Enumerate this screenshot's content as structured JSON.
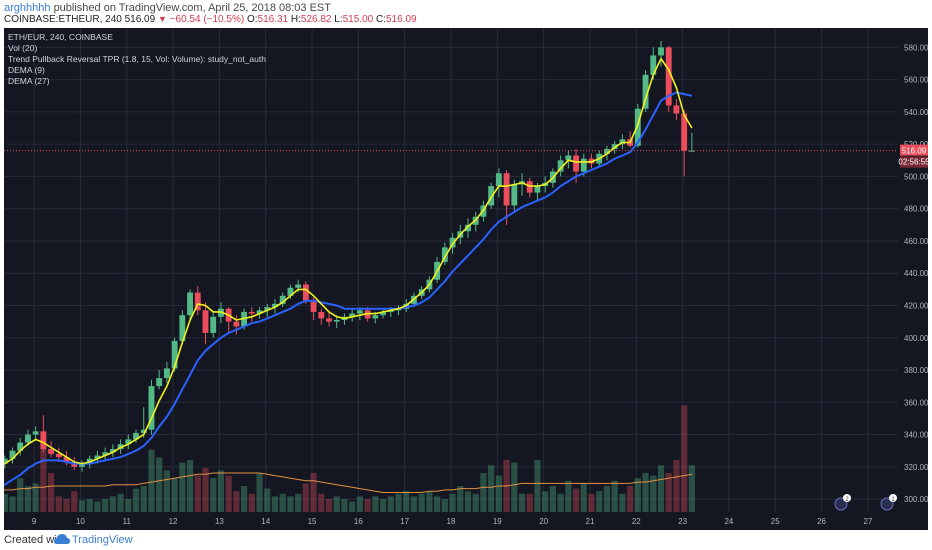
{
  "header": {
    "author": "arghhhhh",
    "published_text": "published on TradingView.com, April 25, 2018 08:03 EST",
    "symbol": "COINBASE:ETHEUR, 240",
    "last": "516.09",
    "change": "−60.54 (−10.5%)",
    "o_label": "O:",
    "o": "516.31",
    "h_label": "H:",
    "h": "526.82",
    "l_label": "L:",
    "l": "515.00",
    "c_label": "C:",
    "c": "516.09"
  },
  "legend": {
    "title": "ETH/EUR, 240, COINBASE",
    "vol": "Vol (20)",
    "tpr": "Trend Pullback Reversal TPR (1.8, 15, Vol: Volume): study_not_auth",
    "dema9": "DEMA (9)",
    "dema27": "DEMA (27)"
  },
  "price_tag": "516.09",
  "countdown_tag": "02:56:55",
  "badges": [
    "2",
    "1"
  ],
  "footer": {
    "created": "Created with",
    "brand": "TradingView"
  },
  "colors": {
    "background": "#141722",
    "up": "#53b987",
    "down": "#eb4d5c",
    "dema9": "#f2f21c",
    "dema27": "#2962ff",
    "vol_ma": "#e0913e",
    "price_line": "#eb4d5c",
    "grid": "#262b3a"
  },
  "chart_data": {
    "type": "candlestick",
    "title": "ETH/EUR, 240, COINBASE",
    "x_tick_labels": [
      "9",
      "10",
      "11",
      "12",
      "13",
      "14",
      "15",
      "16",
      "17",
      "18",
      "19",
      "20",
      "21",
      "22",
      "23",
      "24",
      "25",
      "26",
      "27"
    ],
    "y_tick_labels": [
      "300.00",
      "320.00",
      "340.00",
      "360.00",
      "380.00",
      "400.00",
      "420.00",
      "440.00",
      "460.00",
      "480.00",
      "500.00",
      "520.00",
      "540.00",
      "560.00",
      "580.00"
    ],
    "ylim": [
      292,
      592
    ],
    "candles_per_day": 6,
    "first_candle_day_offset": -1,
    "candles": [
      [
        316,
        321,
        314,
        319
      ],
      [
        319,
        324,
        316,
        322
      ],
      [
        322,
        327,
        319,
        325
      ],
      [
        325,
        332,
        322,
        330
      ],
      [
        330,
        338,
        327,
        335
      ],
      [
        335,
        343,
        333,
        340
      ],
      [
        340,
        345,
        336,
        342
      ],
      [
        342,
        352,
        329,
        331
      ],
      [
        331,
        336,
        326,
        328
      ],
      [
        328,
        332,
        323,
        326
      ],
      [
        326,
        330,
        321,
        323
      ],
      [
        323,
        326,
        318,
        320
      ],
      [
        320,
        324,
        317,
        322
      ],
      [
        322,
        327,
        319,
        325
      ],
      [
        325,
        330,
        322,
        327
      ],
      [
        327,
        332,
        324,
        329
      ],
      [
        329,
        334,
        326,
        331
      ],
      [
        331,
        337,
        328,
        334
      ],
      [
        334,
        340,
        331,
        337
      ],
      [
        337,
        343,
        335,
        341
      ],
      [
        341,
        357,
        338,
        343
      ],
      [
        343,
        374,
        340,
        370
      ],
      [
        370,
        380,
        368,
        375
      ],
      [
        375,
        385,
        372,
        381
      ],
      [
        381,
        400,
        379,
        398
      ],
      [
        398,
        417,
        396,
        414
      ],
      [
        414,
        430,
        410,
        428
      ],
      [
        428,
        432,
        414,
        417
      ],
      [
        417,
        422,
        396,
        403
      ],
      [
        403,
        416,
        400,
        413
      ],
      [
        413,
        422,
        409,
        418
      ],
      [
        418,
        419,
        403,
        410
      ],
      [
        410,
        414,
        402,
        407
      ],
      [
        407,
        418,
        405,
        416
      ],
      [
        416,
        419,
        410,
        415
      ],
      [
        415,
        419,
        412,
        417
      ],
      [
        417,
        421,
        413,
        419
      ],
      [
        419,
        424,
        415,
        421
      ],
      [
        421,
        428,
        419,
        426
      ],
      [
        426,
        433,
        424,
        431
      ],
      [
        431,
        436,
        428,
        433
      ],
      [
        433,
        435,
        421,
        423
      ],
      [
        423,
        425,
        411,
        416
      ],
      [
        416,
        418,
        408,
        412
      ],
      [
        412,
        416,
        407,
        410
      ],
      [
        410,
        414,
        406,
        411
      ],
      [
        411,
        415,
        408,
        413
      ],
      [
        413,
        418,
        410,
        415
      ],
      [
        415,
        419,
        411,
        417
      ],
      [
        417,
        419,
        410,
        412
      ],
      [
        412,
        416,
        409,
        414
      ],
      [
        414,
        418,
        412,
        416
      ],
      [
        416,
        419,
        413,
        417
      ],
      [
        417,
        420,
        414,
        418
      ],
      [
        418,
        424,
        416,
        421
      ],
      [
        421,
        428,
        419,
        426
      ],
      [
        426,
        432,
        424,
        430
      ],
      [
        430,
        438,
        428,
        436
      ],
      [
        436,
        450,
        434,
        447
      ],
      [
        447,
        459,
        445,
        456
      ],
      [
        456,
        465,
        452,
        462
      ],
      [
        462,
        470,
        458,
        466
      ],
      [
        466,
        474,
        462,
        470
      ],
      [
        470,
        478,
        466,
        475
      ],
      [
        475,
        485,
        472,
        482
      ],
      [
        482,
        496,
        480,
        494
      ],
      [
        494,
        505,
        487,
        502
      ],
      [
        502,
        504,
        470,
        482
      ],
      [
        482,
        498,
        479,
        495
      ],
      [
        495,
        502,
        488,
        497
      ],
      [
        497,
        499,
        487,
        490
      ],
      [
        490,
        496,
        485,
        494
      ],
      [
        494,
        500,
        490,
        496
      ],
      [
        496,
        505,
        493,
        503
      ],
      [
        503,
        513,
        500,
        510
      ],
      [
        510,
        516,
        505,
        513
      ],
      [
        513,
        517,
        496,
        503
      ],
      [
        503,
        514,
        500,
        511
      ],
      [
        511,
        514,
        505,
        508
      ],
      [
        508,
        516,
        506,
        514
      ],
      [
        514,
        519,
        510,
        517
      ],
      [
        517,
        522,
        514,
        520
      ],
      [
        520,
        526,
        517,
        523
      ],
      [
        523,
        528,
        518,
        519
      ],
      [
        519,
        545,
        518,
        542
      ],
      [
        542,
        566,
        540,
        563
      ],
      [
        563,
        580,
        560,
        575
      ],
      [
        575,
        584,
        568,
        580
      ],
      [
        580,
        581,
        540,
        544
      ],
      [
        544,
        548,
        535,
        539
      ],
      [
        539,
        541,
        500,
        516
      ],
      [
        516,
        527,
        515,
        516
      ]
    ],
    "dema9": [
      318,
      320,
      322,
      325,
      330,
      334,
      337,
      335,
      332,
      329,
      326,
      323,
      322,
      323,
      325,
      327,
      329,
      332,
      334,
      337,
      340,
      350,
      361,
      370,
      382,
      397,
      411,
      421,
      420,
      416,
      416,
      414,
      411,
      412,
      413,
      415,
      417,
      419,
      422,
      426,
      430,
      430,
      426,
      421,
      416,
      413,
      412,
      413,
      414,
      415,
      415,
      416,
      417,
      418,
      420,
      424,
      428,
      433,
      441,
      450,
      458,
      464,
      469,
      473,
      479,
      487,
      494,
      494,
      495,
      496,
      494,
      494,
      495,
      499,
      505,
      510,
      509,
      509,
      509,
      511,
      514,
      518,
      521,
      521,
      532,
      548,
      563,
      573,
      566,
      555,
      538,
      530
    ],
    "dema27": [
      304,
      306,
      309,
      312,
      315,
      319,
      322,
      324,
      324,
      324,
      323,
      322,
      322,
      322,
      323,
      324,
      325,
      326,
      328,
      330,
      333,
      338,
      345,
      351,
      359,
      368,
      377,
      386,
      392,
      396,
      400,
      403,
      405,
      407,
      409,
      410,
      412,
      414,
      416,
      418,
      421,
      423,
      423,
      422,
      421,
      420,
      418,
      418,
      418,
      418,
      418,
      418,
      418,
      418,
      419,
      420,
      422,
      425,
      430,
      435,
      441,
      446,
      451,
      456,
      461,
      467,
      472,
      475,
      478,
      481,
      483,
      485,
      487,
      490,
      494,
      497,
      500,
      502,
      504,
      506,
      508,
      511,
      513,
      515,
      521,
      529,
      538,
      547,
      550,
      552,
      551,
      550
    ],
    "volume": [
      16,
      18,
      14,
      12,
      26,
      20,
      22,
      56,
      30,
      12,
      10,
      16,
      9,
      10,
      8,
      10,
      12,
      14,
      10,
      18,
      20,
      48,
      42,
      32,
      26,
      38,
      40,
      28,
      34,
      26,
      32,
      28,
      16,
      20,
      14,
      30,
      18,
      12,
      14,
      12,
      14,
      22,
      30,
      14,
      10,
      12,
      10,
      8,
      12,
      10,
      12,
      10,
      12,
      14,
      16,
      12,
      14,
      16,
      12,
      10,
      14,
      20,
      16,
      14,
      30,
      36,
      28,
      40,
      38,
      14,
      14,
      40,
      16,
      20,
      14,
      24,
      18,
      22,
      14,
      16,
      20,
      24,
      14,
      20,
      26,
      30,
      28,
      36,
      30,
      40,
      82,
      36
    ],
    "vol_ma": [
      17,
      17,
      17,
      17,
      18,
      18,
      19,
      19,
      20,
      20,
      20,
      20,
      20,
      20,
      20,
      20,
      21,
      21,
      21,
      21,
      22,
      23,
      24,
      25,
      26,
      27,
      28,
      29,
      29,
      30,
      30,
      30,
      30,
      30,
      30,
      30,
      29,
      28,
      27,
      26,
      25,
      24,
      24,
      23,
      22,
      21,
      20,
      19,
      18,
      17,
      16,
      15,
      15,
      15,
      15,
      15,
      15,
      16,
      16,
      17,
      17,
      18,
      18,
      18,
      19,
      19,
      20,
      20,
      21,
      22,
      22,
      22,
      22,
      22,
      22,
      22,
      22,
      22,
      22,
      22,
      22,
      22,
      22,
      22,
      23,
      23,
      24,
      25,
      26,
      27,
      28,
      29
    ],
    "volume_scale_max": 100
  }
}
